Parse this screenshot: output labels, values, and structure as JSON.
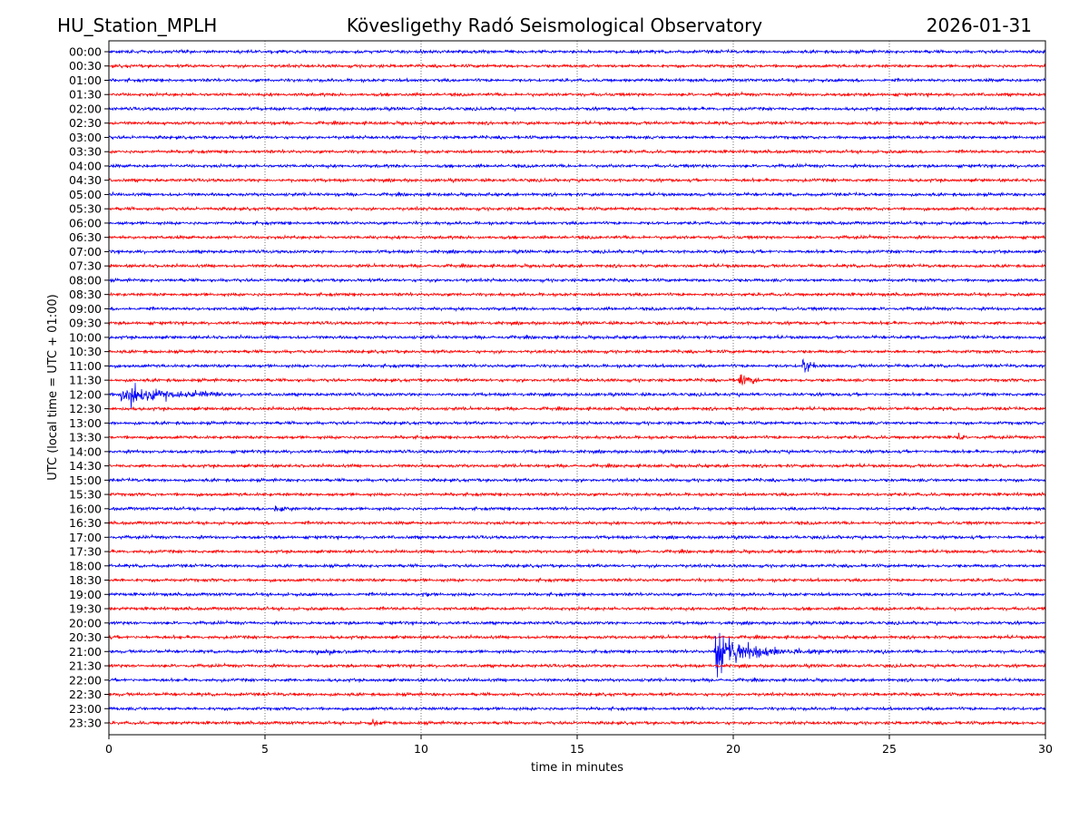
{
  "chart_data": {
    "type": "line",
    "title": {
      "station": "HU_Station_MPLH",
      "observatory": "Kövesligethy Radó Seismological Observatory",
      "date": "2026-01-31"
    },
    "xlabel": "time in minutes",
    "ylabel": "UTC (local time = UTC + 01:00)",
    "xlim": [
      0,
      30
    ],
    "xticks": [
      "0",
      "5",
      "10",
      "15",
      "20",
      "25",
      "30"
    ],
    "grid": "vertical dotted at every 5 minutes",
    "row_labels": [
      "00:00",
      "00:30",
      "01:00",
      "01:30",
      "02:00",
      "02:30",
      "03:00",
      "03:30",
      "04:00",
      "04:30",
      "05:00",
      "05:30",
      "06:00",
      "06:30",
      "07:00",
      "07:30",
      "08:00",
      "08:30",
      "09:00",
      "09:30",
      "10:00",
      "10:30",
      "11:00",
      "11:30",
      "12:00",
      "12:30",
      "13:00",
      "13:30",
      "14:00",
      "14:30",
      "15:00",
      "15:30",
      "16:00",
      "16:30",
      "17:00",
      "17:30",
      "18:00",
      "18:30",
      "19:00",
      "19:30",
      "20:00",
      "20:30",
      "21:00",
      "21:30",
      "22:00",
      "22:30",
      "23:00",
      "23:30"
    ],
    "colors": [
      "#0000ff",
      "#ff0000"
    ],
    "noise_level": 1,
    "events": [
      {
        "row": "11:00",
        "start_min": 22.2,
        "duration_min": 0.4,
        "peak_amplitude": 9,
        "decay": 0.4
      },
      {
        "row": "11:30",
        "start_min": 20.15,
        "duration_min": 0.8,
        "peak_amplitude": 7,
        "decay": 0.4
      },
      {
        "row": "12:00",
        "start_min": 0.35,
        "duration_min": 3.9,
        "peak_amplitude": 10,
        "decay": 1.2
      },
      {
        "row": "13:30",
        "start_min": 27.2,
        "duration_min": 0.2,
        "peak_amplitude": 3,
        "decay": 0.1
      },
      {
        "row": "16:00",
        "start_min": 5.3,
        "duration_min": 0.6,
        "peak_amplitude": 5,
        "decay": 0.2
      },
      {
        "row": "19:00",
        "start_min": 10.05,
        "duration_min": 0.3,
        "peak_amplitude": 3,
        "decay": 0.15
      },
      {
        "row": "21:00",
        "start_min": 6.65,
        "duration_min": 1.0,
        "peak_amplitude": 3,
        "decay": 0.5
      },
      {
        "row": "21:00",
        "start_min": 19.4,
        "duration_min": 5.5,
        "peak_amplitude": 22,
        "decay": 0.9
      },
      {
        "row": "23:30",
        "start_min": 8.4,
        "duration_min": 0.6,
        "peak_amplitude": 3,
        "decay": 0.3
      }
    ]
  }
}
